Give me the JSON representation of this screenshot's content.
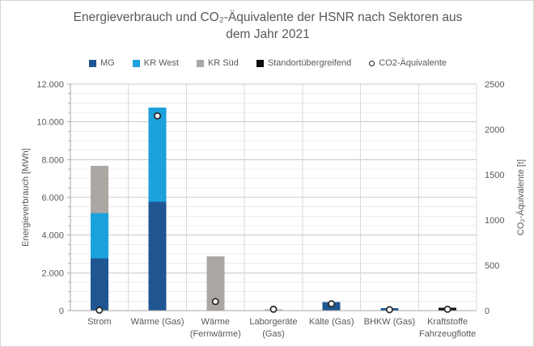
{
  "header": {
    "title_line1": "Energieverbrauch und CO₂-Äquivalente der HSNR nach Sektoren aus",
    "title_line2": "dem Jahr 2021"
  },
  "legend": {
    "items": [
      {
        "label": "MG",
        "swatch": "square",
        "color": "#1F5691"
      },
      {
        "label": "KR West",
        "swatch": "square",
        "color": "#1BA1DC"
      },
      {
        "label": "KR Süd",
        "swatch": "square",
        "color": "#ABA7A3"
      },
      {
        "label": "Standortübergreifend",
        "swatch": "square",
        "color": "#0D0D0D"
      },
      {
        "label": "CO2-Äquivalente",
        "swatch": "circle",
        "color": "#1A1A1A"
      }
    ]
  },
  "chart_data": {
    "type": "bar",
    "title": "Energieverbrauch und CO₂-Äquivalente der HSNR nach Sektoren aus dem Jahr 2021",
    "categories": [
      "Strom",
      "Wärme (Gas)",
      "Wärme (Fernwärme)",
      "Laborgeräte (Gas)",
      "Kälte (Gas)",
      "BHKW (Gas)",
      "Kraftstoffe Fahrzeugflotte"
    ],
    "categories_display": [
      [
        "Strom"
      ],
      [
        "Wärme (Gas)"
      ],
      [
        "Wärme",
        "(Fernwärme)"
      ],
      [
        "Laborgeräte",
        "(Gas)"
      ],
      [
        "Kälte (Gas)"
      ],
      [
        "BHKW (Gas)"
      ],
      [
        "Kraftstoffe",
        "Fahrzeugflotte"
      ]
    ],
    "stacked": true,
    "series": [
      {
        "name": "MG",
        "color": "#1F5691",
        "axis": "left",
        "values": [
          2770,
          5770,
          0,
          0,
          450,
          120,
          0
        ]
      },
      {
        "name": "KR West",
        "color": "#1BA1DC",
        "axis": "left",
        "values": [
          2390,
          4990,
          0,
          0,
          0,
          0,
          0
        ]
      },
      {
        "name": "KR Süd",
        "color": "#ABA7A3",
        "axis": "left",
        "values": [
          2510,
          0,
          2870,
          60,
          0,
          0,
          0
        ]
      },
      {
        "name": "Standortübergreifend",
        "color": "#0D0D0D",
        "axis": "left",
        "values": [
          0,
          0,
          0,
          0,
          0,
          0,
          140
        ]
      }
    ],
    "scatter_series": {
      "name": "CO2-Äquivalente",
      "axis": "right",
      "marker": "open-circle",
      "marker_color": "#262626",
      "values": [
        5,
        2150,
        100,
        15,
        75,
        10,
        15
      ]
    },
    "left_axis": {
      "label": "Energieverbrauch [MWh]",
      "min": 0,
      "max": 12000,
      "major_step": 2000,
      "minor_step": 500,
      "tick_labels": [
        "0",
        "2.000",
        "4.000",
        "6.000",
        "8.000",
        "10.000",
        "12.000"
      ]
    },
    "right_axis": {
      "label": "CO₂-Äquivalente [t]",
      "min": 0,
      "max": 2500,
      "major_step": 500,
      "tick_labels": [
        "0",
        "500",
        "1000",
        "1500",
        "2000",
        "2500"
      ]
    },
    "grid": {
      "major_color": "#C9C9C9",
      "minor_color": "#ECECEC",
      "vertical_color": "#D9D9D9",
      "axis_color": "#A6A6A6"
    },
    "legend_position": "top"
  }
}
